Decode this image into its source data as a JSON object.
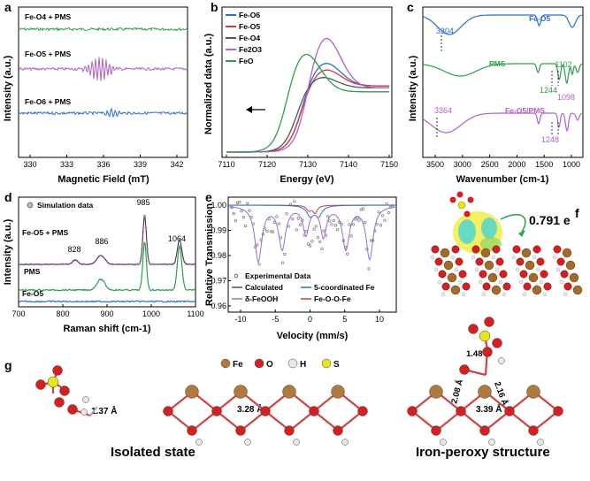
{
  "panels": {
    "a": {
      "letter": "a",
      "xlabel": "Magnetic Field (mT)",
      "ylabel": "Intensity (a.u.)",
      "xticks": [
        "330",
        "333",
        "336",
        "339",
        "342"
      ],
      "traces": [
        "Fe-O4 + PMS",
        "Fe-O5 + PMS",
        "Fe-O6 + PMS"
      ],
      "trace_colors": [
        "#2e9e4a",
        "#b160c8",
        "#2c6fd0"
      ]
    },
    "b": {
      "letter": "b",
      "xlabel": "Energy (eV)",
      "ylabel": "Normalized data (a.u.)",
      "xticks": [
        "7110",
        "7120",
        "7130",
        "7140",
        "7150"
      ],
      "legend": [
        "Fe-O6",
        "Fe-O5",
        "Fe-O4",
        "Fe2O3",
        "FeO"
      ],
      "legend_colors": [
        "#2c6fd0",
        "#d33b3b",
        "#555555",
        "#b160c8",
        "#2e9e4a"
      ]
    },
    "c": {
      "letter": "c",
      "xlabel": "Wavenumber (cm-1)",
      "ylabel": "Intensity (a.u.)",
      "xticks": [
        "3500",
        "3000",
        "2500",
        "2000",
        "1500",
        "1000"
      ],
      "traces": [
        "Fe-O5",
        "PMS",
        "Fe-O5/PMS"
      ],
      "trace_colors": [
        "#2c6fd0",
        "#2e9e4a",
        "#b160c8"
      ],
      "annotations": [
        "3304",
        "1102",
        "1244",
        "1098",
        "3364",
        "1248"
      ]
    },
    "d": {
      "letter": "d",
      "xlabel": "Raman shift (cm-1)",
      "ylabel": "Intensity (a.u.)",
      "xticks": [
        "700",
        "800",
        "900",
        "1000",
        "1100"
      ],
      "legend": "Simulation data",
      "traces": [
        "Fe-O5 + PMS",
        "PMS",
        "Fe-O5"
      ],
      "trace_colors": [
        "#b160c8",
        "#2e9e4a",
        "#2c6fd0"
      ],
      "peaks": [
        "828",
        "886",
        "985",
        "1064"
      ]
    },
    "e": {
      "letter": "e",
      "xlabel": "Velocity (mm/s)",
      "ylabel": "Relative Transmission",
      "xticks": [
        "-10",
        "-5",
        "0",
        "5",
        "10"
      ],
      "yticks": [
        "1.00",
        "0.99",
        "0.98",
        "0.97",
        "0.96"
      ],
      "legend": [
        "Experimental Data",
        "Calculated",
        "5-coordinated Fe",
        "δ-FeOOH",
        "Fe-O-O-Fe"
      ],
      "legend_colors": [
        "#777777",
        "#555555",
        "#2c6fd0",
        "#9a6ad8",
        "#d33b3b"
      ]
    },
    "f": {
      "letter": "f",
      "charge": "0.791 e"
    },
    "g": {
      "letter": "g",
      "legend": [
        "Fe",
        "O",
        "H",
        "S"
      ],
      "legend_colors": [
        "#b07a3c",
        "#d42020",
        "#e8e8e8",
        "#e6e61a"
      ],
      "left_caption": "Isolated state",
      "right_caption": "Iron-peroxy structure",
      "d_left": "1.37 Å",
      "d_mid": "3.28 Å",
      "d_right_fefe": "3.39 Å",
      "d_r1": "2.08 Å",
      "d_r2": "1.48 Å",
      "d_r3": "2.16 Å"
    }
  },
  "chart_data": [
    {
      "type": "line",
      "title": "",
      "xlabel": "Magnetic Field (mT)",
      "ylabel": "Intensity (a.u.)",
      "xlim": [
        329,
        343
      ],
      "series": [
        {
          "name": "Fe-O4 + PMS"
        },
        {
          "name": "Fe-O5 + PMS"
        },
        {
          "name": "Fe-O6 + PMS"
        }
      ]
    },
    {
      "type": "line",
      "xlabel": "Energy (eV)",
      "ylabel": "Normalized data (a.u.)",
      "xlim": [
        7110,
        7150
      ],
      "series": [
        {
          "name": "Fe-O6"
        },
        {
          "name": "Fe-O5"
        },
        {
          "name": "Fe-O4"
        },
        {
          "name": "Fe2O3"
        },
        {
          "name": "FeO"
        }
      ]
    },
    {
      "type": "line",
      "xlabel": "Wavenumber (cm-1)",
      "ylabel": "Intensity (a.u.)",
      "xlim": [
        3800,
        800
      ],
      "series": [
        {
          "name": "Fe-O5"
        },
        {
          "name": "PMS"
        },
        {
          "name": "Fe-O5/PMS"
        }
      ]
    },
    {
      "type": "line",
      "xlabel": "Raman shift (cm-1)",
      "ylabel": "Intensity (a.u.)",
      "xlim": [
        700,
        1100
      ],
      "peaks": [
        828,
        886,
        985,
        1064
      ],
      "series": [
        {
          "name": "Fe-O5 + PMS"
        },
        {
          "name": "PMS"
        },
        {
          "name": "Fe-O5"
        }
      ]
    },
    {
      "type": "scatter",
      "xlabel": "Velocity (mm/s)",
      "ylabel": "Relative Transmission",
      "xlim": [
        -12,
        12
      ],
      "ylim": [
        0.955,
        1.005
      ],
      "series": [
        {
          "name": "Experimental Data"
        },
        {
          "name": "Calculated"
        },
        {
          "name": "5-coordinated Fe"
        },
        {
          "name": "δ-FeOOH"
        },
        {
          "name": "Fe-O-O-Fe"
        }
      ]
    }
  ]
}
